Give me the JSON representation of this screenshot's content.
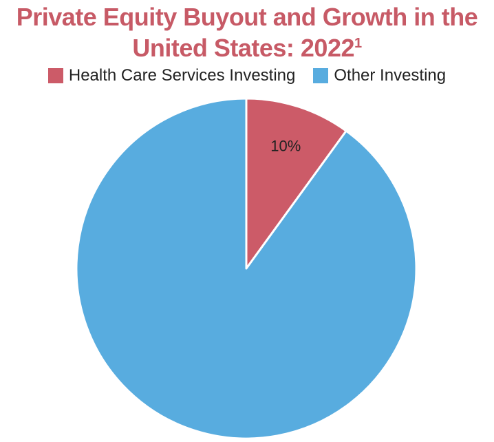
{
  "title": {
    "line1": "Private Equity Buyout and Growth in the",
    "line2": "United States: 2022",
    "superscript": "1"
  },
  "legend": {
    "items": [
      {
        "label": "Health Care Services Investing",
        "color": "#cc5b68"
      },
      {
        "label": "Other Investing",
        "color": "#58acdf"
      }
    ]
  },
  "chart_data": {
    "type": "pie",
    "title": "Private Equity Buyout and Growth in the United States: 2022",
    "legend_position": "top",
    "slices": [
      {
        "name": "Health Care Services Investing",
        "value": 10,
        "label": "10%",
        "color": "#cc5b68"
      },
      {
        "name": "Other Investing",
        "value": 90,
        "label": "",
        "color": "#58acdf"
      }
    ]
  }
}
